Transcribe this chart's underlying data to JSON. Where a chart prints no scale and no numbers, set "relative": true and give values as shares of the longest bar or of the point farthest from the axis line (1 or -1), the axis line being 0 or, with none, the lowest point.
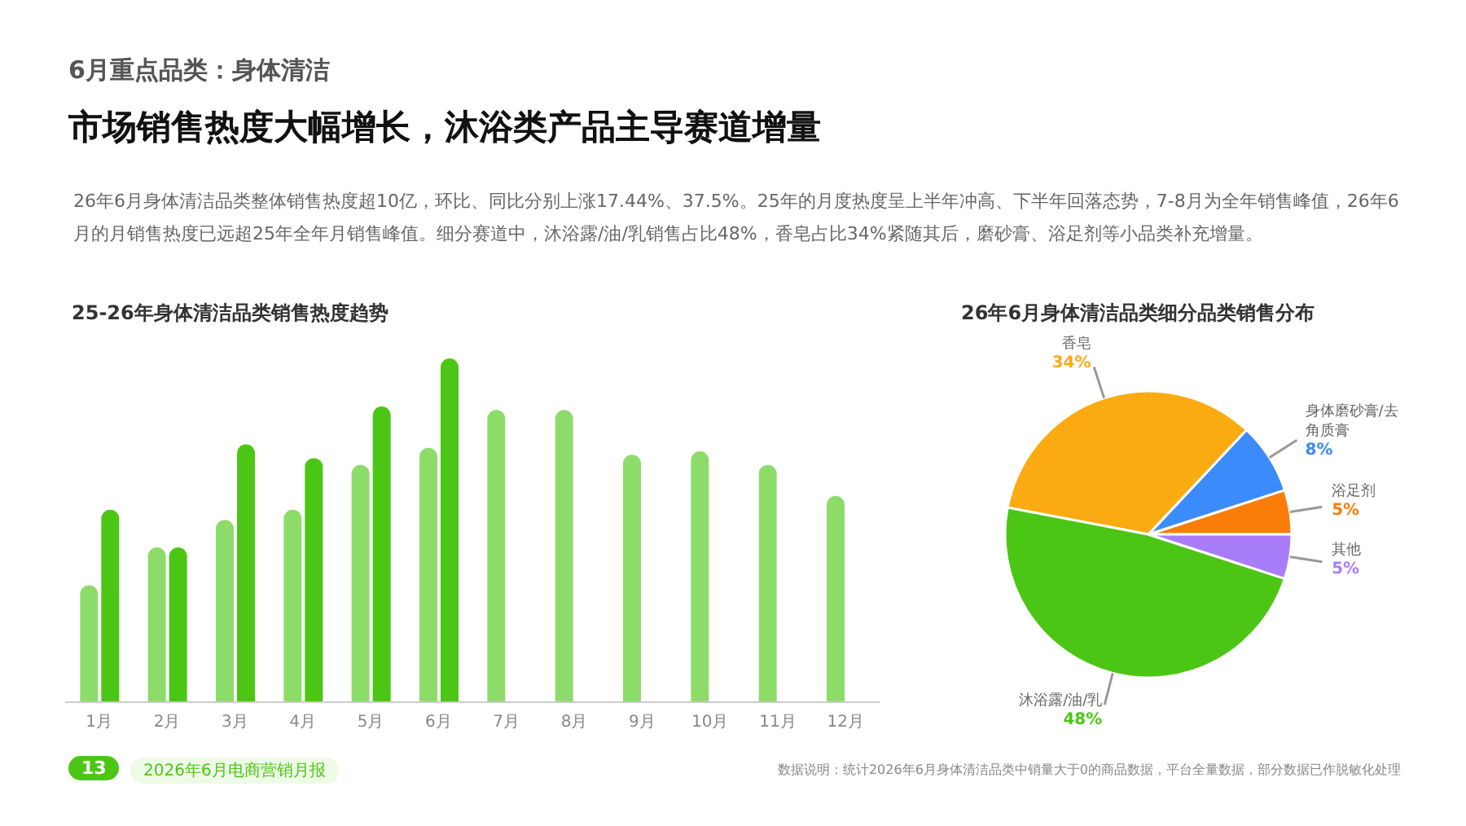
{
  "chart_data": [
    {
      "type": "other",
      "title": "6月重点品类：身体清洁",
      "subtitle": "市场销售热度大幅增长，沐浴类产品主导赛道增量",
      "annotations": [
        "26年6月身体清洁品类整体销售热度超10亿，环比、同比分别上涨17.44%、37.5%。25年的月度热度呈上半年冲高、下半年回落态势，7-8月为全年销售峰值，26年6月的月销售热度已远超25年全年月销售峰值。细分赛道中，沐浴露/油/乳销售占比48%，香皂占比34%紧随其后，磨砂膏、浴足剂等小品类补充增量。",
        "13",
        "2026年6月电商营销月报",
        "数据说明：统计2026年6月身体清洁品类中销量大于0的商品数据，平台全量数据，部分数据已作脱敏化处理"
      ]
    },
    {
      "type": "bar",
      "title": "25-26年身体清洁品类销售热度趋势",
      "relative": true,
      "categories": [
        "1月",
        "2月",
        "3月",
        "4月",
        "5月",
        "6月",
        "7月",
        "8月",
        "9月",
        "10月",
        "11月",
        "12月"
      ],
      "series": [
        {
          "color": "#8ddc6a",
          "values": [
            0.34,
            0.45,
            0.53,
            0.56,
            0.69,
            0.74,
            0.85,
            0.85,
            0.72,
            0.73,
            0.69,
            0.6
          ]
        },
        {
          "color": "#4cc614",
          "values": [
            0.56,
            0.45,
            0.75,
            0.71,
            0.86,
            1,
            null,
            null,
            null,
            null,
            null,
            null
          ]
        }
      ],
      "grid": false,
      "legend": false
    },
    {
      "type": "pie",
      "title": "26年6月身体清洁品类细分品类销售分布",
      "categories": [
        "浴足剂",
        "身体磨砂膏/去角质膏",
        "香皂",
        "沐浴露/油/乳",
        "其他"
      ],
      "values": [
        5,
        8,
        34,
        48,
        5
      ],
      "colors": [
        "#fb7d09",
        "#3b8bfb",
        "#fbab12",
        "#4cc614",
        "#a97dfa"
      ],
      "value_labels": [
        "5%",
        "8%",
        "34%",
        "48%",
        "5%"
      ],
      "legend": false
    }
  ]
}
